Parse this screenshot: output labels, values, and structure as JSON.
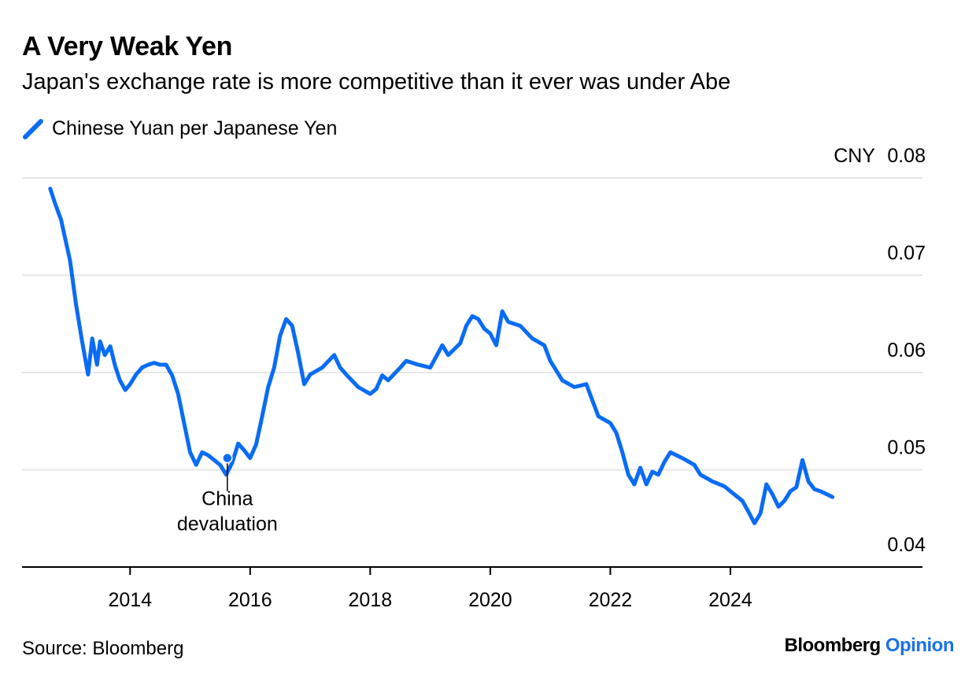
{
  "title": "A Very Weak Yen",
  "subtitle": "Japan's exchange rate is more competitive than it ever was under Abe",
  "source": "Source: Bloomberg",
  "brand": {
    "name": "Bloomberg",
    "accent": "Opinion"
  },
  "colors": {
    "series": "#0a6cf5",
    "grid": "#e6e6e6",
    "axis": "#000000"
  },
  "chart_data": {
    "type": "line",
    "title": "A Very Weak Yen",
    "subtitle": "Japan's exchange rate is more competitive than it ever was under Abe",
    "xlabel": "",
    "ylabel": "",
    "ylim": [
      0.04,
      0.08
    ],
    "xlim": [
      2012.2,
      2027.2
    ],
    "y_ticks": [
      0.04,
      0.05,
      0.06,
      0.07,
      0.08
    ],
    "y_tick_labels": [
      "0.04",
      "0.05",
      "0.06",
      "0.07",
      "0.08"
    ],
    "y_unit_label": "CNY",
    "x_ticks": [
      2014,
      2016,
      2018,
      2020,
      2022,
      2024
    ],
    "x_tick_labels": [
      "2014",
      "2016",
      "2018",
      "2020",
      "2022",
      "2024"
    ],
    "legend": [
      "Chinese Yuan per Japanese Yen"
    ],
    "legend_position": "top-left",
    "grid": true,
    "series": [
      {
        "name": "Chinese Yuan per Japanese Yen",
        "x": [
          2012.67,
          2012.75,
          2012.85,
          2013.0,
          2013.1,
          2013.2,
          2013.3,
          2013.37,
          2013.45,
          2013.5,
          2013.58,
          2013.67,
          2013.75,
          2013.83,
          2013.92,
          2014.0,
          2014.1,
          2014.2,
          2014.3,
          2014.4,
          2014.5,
          2014.6,
          2014.7,
          2014.8,
          2014.9,
          2015.0,
          2015.1,
          2015.2,
          2015.3,
          2015.4,
          2015.5,
          2015.6,
          2015.7,
          2015.8,
          2015.9,
          2016.0,
          2016.1,
          2016.2,
          2016.3,
          2016.4,
          2016.5,
          2016.6,
          2016.7,
          2016.8,
          2016.9,
          2017.0,
          2017.2,
          2017.4,
          2017.5,
          2017.6,
          2017.8,
          2018.0,
          2018.1,
          2018.2,
          2018.3,
          2018.5,
          2018.6,
          2018.8,
          2019.0,
          2019.2,
          2019.3,
          2019.5,
          2019.6,
          2019.7,
          2019.8,
          2019.9,
          2020.0,
          2020.1,
          2020.2,
          2020.3,
          2020.5,
          2020.7,
          2020.9,
          2021.0,
          2021.2,
          2021.4,
          2021.6,
          2021.8,
          2022.0,
          2022.1,
          2022.2,
          2022.3,
          2022.4,
          2022.5,
          2022.6,
          2022.7,
          2022.8,
          2022.9,
          2023.0,
          2023.2,
          2023.4,
          2023.5,
          2023.7,
          2023.9,
          2024.0,
          2024.2,
          2024.3,
          2024.4,
          2024.5,
          2024.6,
          2024.7,
          2024.8,
          2024.9,
          2025.0,
          2025.1,
          2025.2,
          2025.3,
          2025.4,
          2025.5,
          2025.6,
          2025.7
        ],
        "y": [
          0.0789,
          0.0774,
          0.0757,
          0.0715,
          0.067,
          0.0632,
          0.0598,
          0.0635,
          0.0608,
          0.0632,
          0.0618,
          0.0627,
          0.0607,
          0.0592,
          0.0582,
          0.0588,
          0.0598,
          0.0605,
          0.0608,
          0.061,
          0.0608,
          0.0608,
          0.0597,
          0.0578,
          0.0548,
          0.0518,
          0.0505,
          0.0518,
          0.0515,
          0.051,
          0.0505,
          0.0495,
          0.0507,
          0.0527,
          0.052,
          0.0512,
          0.0526,
          0.0555,
          0.0585,
          0.0605,
          0.0638,
          0.0655,
          0.0648,
          0.062,
          0.0588,
          0.0598,
          0.0605,
          0.0618,
          0.0605,
          0.0598,
          0.0585,
          0.0578,
          0.0583,
          0.0597,
          0.0592,
          0.0605,
          0.0612,
          0.0608,
          0.0605,
          0.0628,
          0.0618,
          0.063,
          0.0648,
          0.0658,
          0.0655,
          0.0645,
          0.064,
          0.0628,
          0.0663,
          0.0652,
          0.0648,
          0.0635,
          0.0628,
          0.0612,
          0.0592,
          0.0585,
          0.0588,
          0.0555,
          0.0548,
          0.0538,
          0.0518,
          0.0495,
          0.0485,
          0.0502,
          0.0485,
          0.0498,
          0.0495,
          0.0508,
          0.0518,
          0.0512,
          0.0505,
          0.0495,
          0.0488,
          0.0483,
          0.0478,
          0.0468,
          0.0457,
          0.0445,
          0.0455,
          0.0485,
          0.0475,
          0.0462,
          0.0468,
          0.0478,
          0.0482,
          0.051,
          0.0488,
          0.048,
          0.0478,
          0.0475,
          0.0472
        ]
      }
    ],
    "annotations": [
      {
        "text_line1": "China",
        "text_line2": "devaluation",
        "x": 2015.62,
        "y": 0.0512
      }
    ]
  }
}
